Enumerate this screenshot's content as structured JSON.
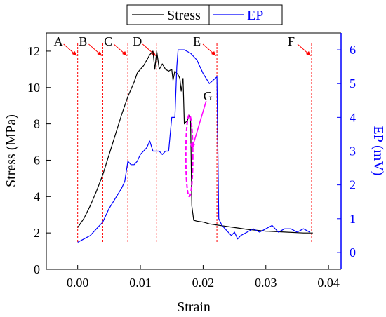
{
  "chart_data": {
    "type": "line",
    "title": "",
    "xlabel": "Strain",
    "ylabel": "Stress (MPa)",
    "y2label": "EP (mV)",
    "xlim": [
      -0.005,
      0.042
    ],
    "ylim": [
      0,
      13
    ],
    "y2lim": [
      -0.5,
      6.5
    ],
    "xticks": [
      0.0,
      0.01,
      0.02,
      0.03,
      0.04
    ],
    "xtick_labels": [
      "0.00",
      "0.01",
      "0.02",
      "0.03",
      "0.04"
    ],
    "yticks": [
      0,
      2,
      4,
      6,
      8,
      10,
      12
    ],
    "ytick_labels": [
      "0",
      "2",
      "4",
      "6",
      "8",
      "10",
      "12"
    ],
    "y2ticks": [
      0,
      1,
      2,
      3,
      4,
      5,
      6
    ],
    "y2tick_labels": [
      "0",
      "1",
      "2",
      "3",
      "4",
      "5",
      "6"
    ],
    "legend": {
      "placement": "top-center",
      "entries": [
        "Stress",
        "EP"
      ]
    },
    "colors": {
      "stress": "#000000",
      "ep": "#0000ff",
      "markers": "#ff0000",
      "highlight": "#ff00ff"
    },
    "series": [
      {
        "name": "Stress",
        "axis": "left",
        "x": [
          0.0,
          0.001,
          0.002,
          0.003,
          0.004,
          0.005,
          0.006,
          0.007,
          0.008,
          0.009,
          0.0095,
          0.01,
          0.0105,
          0.011,
          0.0115,
          0.012,
          0.0123,
          0.0126,
          0.013,
          0.0135,
          0.014,
          0.0145,
          0.015,
          0.0152,
          0.0155,
          0.016,
          0.0163,
          0.0165,
          0.0168,
          0.017,
          0.0175,
          0.0178,
          0.018,
          0.0182,
          0.0185,
          0.019,
          0.02,
          0.021,
          0.022,
          0.023,
          0.025,
          0.027,
          0.03,
          0.033,
          0.036,
          0.0375
        ],
        "y": [
          2.3,
          2.8,
          3.5,
          4.3,
          5.2,
          6.3,
          7.4,
          8.5,
          9.5,
          10.3,
          10.8,
          11.0,
          11.2,
          11.5,
          11.8,
          12.0,
          11.0,
          12.0,
          11.0,
          11.3,
          11.0,
          10.9,
          11.0,
          10.4,
          10.9,
          10.7,
          10.5,
          9.8,
          10.5,
          8.0,
          8.2,
          8.5,
          8.3,
          3.5,
          2.7,
          2.65,
          2.6,
          2.5,
          2.45,
          2.4,
          2.3,
          2.2,
          2.1,
          2.05,
          2.0,
          2.0
        ]
      },
      {
        "name": "EP",
        "axis": "right",
        "x": [
          0.0,
          0.001,
          0.002,
          0.003,
          0.004,
          0.005,
          0.006,
          0.007,
          0.0075,
          0.008,
          0.0085,
          0.009,
          0.0095,
          0.01,
          0.0105,
          0.011,
          0.0115,
          0.012,
          0.0125,
          0.013,
          0.0135,
          0.014,
          0.0145,
          0.015,
          0.0155,
          0.0158,
          0.016,
          0.017,
          0.018,
          0.019,
          0.02,
          0.021,
          0.0222,
          0.0225,
          0.023,
          0.0235,
          0.024,
          0.0245,
          0.025,
          0.0255,
          0.026,
          0.027,
          0.028,
          0.029,
          0.03,
          0.031,
          0.032,
          0.033,
          0.034,
          0.035,
          0.036,
          0.037
        ],
        "y": [
          0.3,
          0.4,
          0.5,
          0.7,
          0.9,
          1.3,
          1.6,
          1.9,
          2.1,
          2.7,
          2.6,
          2.6,
          2.7,
          2.9,
          3.0,
          3.1,
          3.3,
          3.0,
          3.0,
          3.0,
          2.9,
          3.0,
          3.0,
          4.0,
          4.0,
          5.5,
          6.0,
          6.0,
          5.9,
          5.7,
          5.3,
          5.0,
          5.2,
          1.0,
          0.8,
          0.7,
          0.6,
          0.5,
          0.6,
          0.4,
          0.5,
          0.6,
          0.7,
          0.6,
          0.7,
          0.8,
          0.6,
          0.7,
          0.7,
          0.6,
          0.7,
          0.6
        ]
      }
    ],
    "markers": [
      {
        "label": "A",
        "x": 0.0
      },
      {
        "label": "B",
        "x": 0.004
      },
      {
        "label": "C",
        "x": 0.008
      },
      {
        "label": "D",
        "x": 0.0126
      },
      {
        "label": "E",
        "x": 0.0222
      },
      {
        "label": "F",
        "x": 0.0373
      }
    ],
    "annotation": {
      "label": "G",
      "x": 0.0178,
      "y_range": [
        4.0,
        8.5
      ]
    }
  }
}
